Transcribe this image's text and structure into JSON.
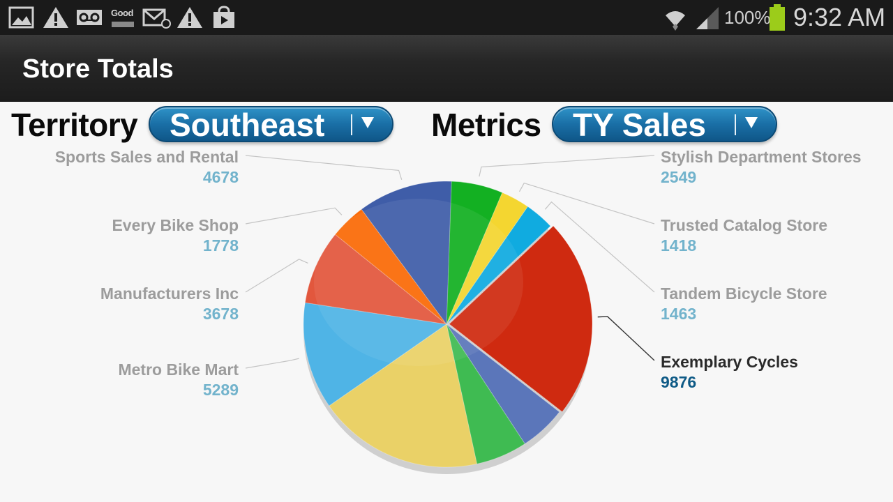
{
  "status_bar": {
    "battery_percent": "100%",
    "time": "9:32 AM",
    "good_label": "Good",
    "icons": [
      "gallery-icon",
      "warning-icon",
      "voicemail-icon",
      "good-app-icon",
      "email-icon",
      "warning-icon",
      "play-store-icon",
      "wifi-icon",
      "signal-icon",
      "battery-icon"
    ]
  },
  "action_bar": {
    "title": "Store Totals"
  },
  "controls": {
    "territory_label": "Territory",
    "territory_value": "Southeast",
    "metrics_label": "Metrics",
    "metrics_value": "TY Sales"
  },
  "colors": {
    "accent": "#1a6fa6",
    "value_text": "#72b3cc",
    "selected_value_text": "#0e5a86"
  },
  "chart_data": {
    "type": "pie",
    "selected": "Exemplary Cycles",
    "slices": [
      {
        "name": "Stylish Department Stores",
        "value": 2549,
        "color": "#13b022"
      },
      {
        "name": "Trusted Catalog Store",
        "value": 1418,
        "color": "#f4d630"
      },
      {
        "name": "Tandem Bicycle Store",
        "value": 1463,
        "color": "#10abe0"
      },
      {
        "name": "Exemplary Cycles",
        "value": 9876,
        "color": "#cf2a10"
      },
      {
        "name": "",
        "value": 2300,
        "color": "#5b76ba"
      },
      {
        "name": "",
        "value": 2550,
        "color": "#3fbb52"
      },
      {
        "name": "",
        "value": 8200,
        "color": "#ead167"
      },
      {
        "name": "Metro Bike Mart",
        "value": 5289,
        "color": "#4fb4e6"
      },
      {
        "name": "Manufacturers Inc",
        "value": 3678,
        "color": "#e2573d"
      },
      {
        "name": "Every Bike Shop",
        "value": 1778,
        "color": "#fa6a06"
      },
      {
        "name": "Sports Sales and Rental",
        "value": 4678,
        "color": "#3f5da8"
      }
    ]
  },
  "labels_left": [
    {
      "name": "Sports Sales and Rental",
      "value": "4678"
    },
    {
      "name": "Every Bike Shop",
      "value": "1778"
    },
    {
      "name": "Manufacturers Inc",
      "value": "3678"
    },
    {
      "name": "Metro Bike Mart",
      "value": "5289"
    }
  ],
  "labels_right": [
    {
      "name": "Stylish Department Stores",
      "value": "2549"
    },
    {
      "name": "Trusted Catalog Store",
      "value": "1418"
    },
    {
      "name": "Tandem Bicycle Store",
      "value": "1463"
    },
    {
      "name": "Exemplary Cycles",
      "value": "9876"
    }
  ]
}
